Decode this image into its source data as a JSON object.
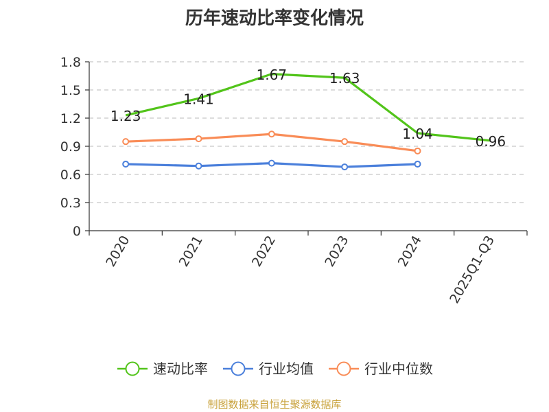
{
  "chart_data": {
    "type": "line",
    "title": "历年速动比率变化情况",
    "categories": [
      "2020",
      "2021",
      "2022",
      "2023",
      "2024",
      "2025Q1-Q3"
    ],
    "series": [
      {
        "name": "速动比率",
        "color": "#52c41a",
        "values": [
          1.23,
          1.41,
          1.67,
          1.63,
          1.04,
          0.96
        ],
        "labeled": true
      },
      {
        "name": "行业均值",
        "color": "#4a7fdb",
        "values": [
          0.71,
          0.69,
          0.72,
          0.68,
          0.71,
          null
        ],
        "labeled": false
      },
      {
        "name": "行业中位数",
        "color": "#f98c57",
        "values": [
          0.95,
          0.98,
          1.03,
          0.95,
          0.85,
          null
        ],
        "labeled": false
      }
    ],
    "yticks": [
      "0",
      "0.3",
      "0.6",
      "0.9",
      "1.2",
      "1.5",
      "1.8"
    ],
    "ylim": [
      0,
      1.8
    ],
    "grid": true,
    "legend_position": "bottom"
  },
  "footer": "制图数据来自恒生聚源数据库"
}
